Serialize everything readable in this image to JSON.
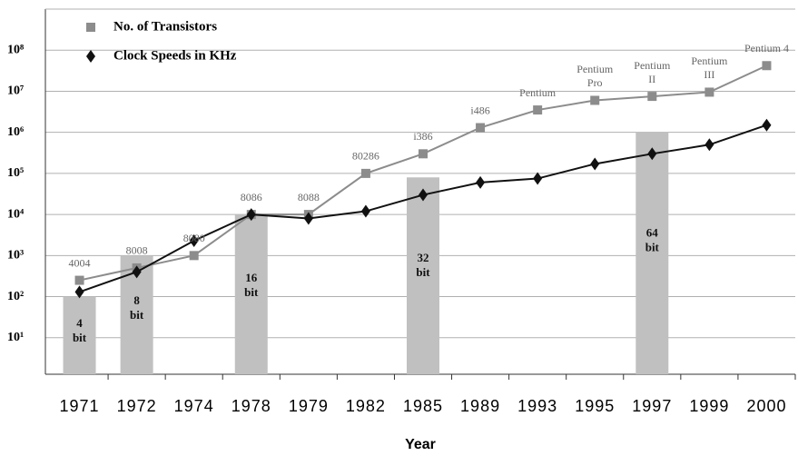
{
  "chart_data": {
    "type": "line",
    "x_label": "Year",
    "categories": [
      "1971",
      "1972",
      "1974",
      "1978",
      "1979",
      "1982",
      "1985",
      "1989",
      "1993",
      "1995",
      "1997",
      "1999",
      "2000"
    ],
    "series": [
      {
        "name": "No. of Transistors",
        "color": "#8c8c8c",
        "marker": "square",
        "values": [
          250,
          500,
          1000,
          10000,
          10000,
          100000,
          300000,
          1300000,
          3500000,
          6000000,
          7500000,
          9500000,
          42000000
        ]
      },
      {
        "name": "Clock Speeds in KHz",
        "color": "#111111",
        "marker": "diamond",
        "values": [
          130,
          400,
          2300,
          10000,
          8000,
          12000,
          30000,
          60000,
          75000,
          170000,
          300000,
          500000,
          1500000
        ]
      }
    ],
    "chip_labels": [
      [
        "4004"
      ],
      [
        "8008"
      ],
      [
        "8080"
      ],
      [
        "8086"
      ],
      [
        "8088"
      ],
      [
        "80286"
      ],
      [
        "i386"
      ],
      [
        "i486"
      ],
      [
        "Pentium"
      ],
      [
        "Pentium",
        "Pro"
      ],
      [
        "Pentium",
        "II"
      ],
      [
        "Pentium",
        "III"
      ],
      [
        "Pentium 4"
      ]
    ],
    "bars": {
      "color": "#c0c0c0",
      "values": [
        100,
        1000,
        null,
        10000,
        null,
        null,
        80000,
        null,
        null,
        null,
        1000000,
        null,
        null
      ],
      "value_labels": [
        [
          "4",
          "bit"
        ],
        [
          "8",
          "bit"
        ],
        null,
        [
          "16",
          "bit"
        ],
        null,
        null,
        [
          "32",
          "bit"
        ],
        null,
        null,
        null,
        [
          "64",
          "bit"
        ],
        null,
        null
      ]
    },
    "log_scale": true,
    "ylim": [
      1,
      1000000000
    ],
    "yticks": [
      {
        "value": 10,
        "label": "10¹"
      },
      {
        "value": 100,
        "label": "10²"
      },
      {
        "value": 1000,
        "label": "10³"
      },
      {
        "value": 10000,
        "label": "10⁴"
      },
      {
        "value": 100000,
        "label": "10⁵"
      },
      {
        "value": 1000000,
        "label": "10⁶"
      },
      {
        "value": 10000000,
        "label": "10⁷"
      },
      {
        "value": 100000000,
        "label": "10⁸"
      }
    ],
    "grid": true,
    "legend": "top-left"
  }
}
